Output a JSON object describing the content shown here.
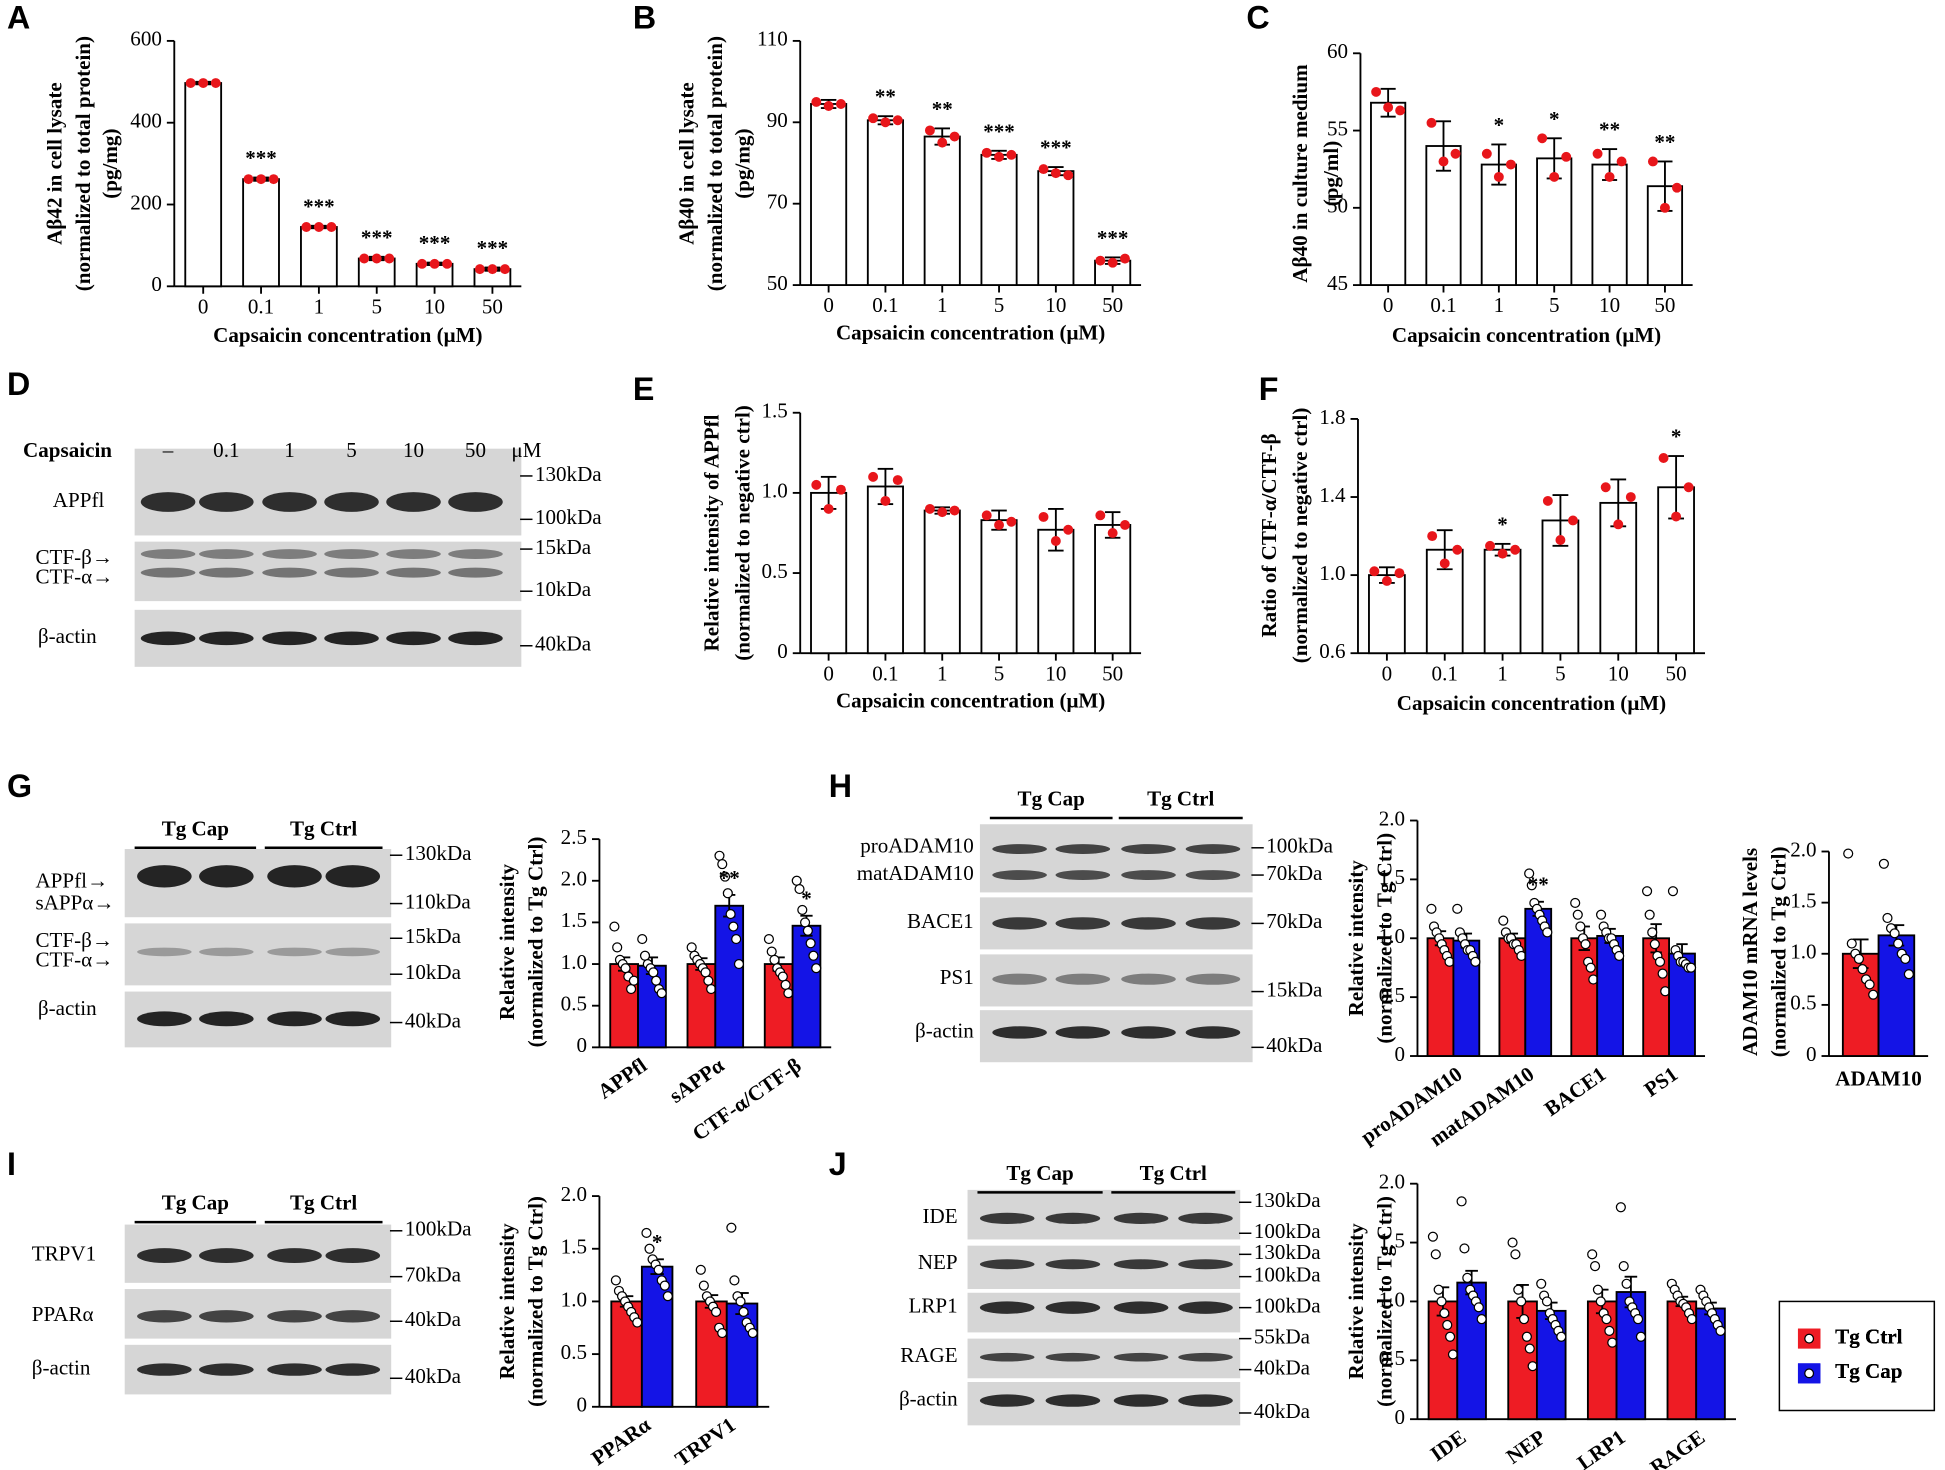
{
  "chart_data": [
    {
      "type": "bar",
      "letter": "A",
      "ylabel": [
        "Aβ42 in cell lysate",
        "(normalized to total protein)",
        "(pg/mg)"
      ],
      "xlabel": "Capsaicin concentration (μM)",
      "categories": [
        "0",
        "0.1",
        "1",
        "5",
        "10",
        "50"
      ],
      "values": [
        497,
        262,
        145,
        68,
        55,
        42
      ],
      "errors": [
        3,
        4,
        3,
        4,
        3,
        4
      ],
      "points": [
        [
          497,
          497,
          497
        ],
        [
          262,
          262,
          262
        ],
        [
          145,
          145,
          145
        ],
        [
          68,
          68,
          68
        ],
        [
          55,
          55,
          55
        ],
        [
          42,
          42,
          42
        ]
      ],
      "sig": [
        null,
        "***",
        "***",
        "***",
        "***",
        "***"
      ],
      "color": "#e8161b",
      "ylim": [
        0,
        600
      ],
      "yticks": [
        0,
        200,
        400,
        600
      ]
    },
    {
      "type": "bar",
      "letter": "B",
      "ylabel": [
        "Aβ40 in cell lysate",
        "(normalized to total protein)",
        "(pg/mg)"
      ],
      "xlabel": "Capsaicin concentration (μM)",
      "categories": [
        "0",
        "0.1",
        "1",
        "5",
        "10",
        "50"
      ],
      "values": [
        94.5,
        90.5,
        86.5,
        82,
        78,
        56
      ],
      "errors": [
        1,
        1,
        2,
        1,
        1,
        0.8
      ],
      "points": [
        [
          95,
          94,
          94.5
        ],
        [
          91,
          90,
          90.5
        ],
        [
          88,
          85,
          86.5
        ],
        [
          82.5,
          81.5,
          82
        ],
        [
          78.5,
          77.5,
          77
        ],
        [
          56,
          55.5,
          56.5
        ]
      ],
      "sig": [
        null,
        "**",
        "**",
        "***",
        "***",
        "***"
      ],
      "color": "#e8161b",
      "ylim": [
        50,
        110
      ],
      "yticks": [
        50,
        70,
        90,
        110
      ]
    },
    {
      "type": "bar",
      "letter": "C",
      "ylabel": [
        "Aβ40 in culture medium",
        "(pg/ml)"
      ],
      "xlabel": "Capsaicin concentration (μM)",
      "categories": [
        "0",
        "0.1",
        "1",
        "5",
        "10",
        "50"
      ],
      "values": [
        56.8,
        54,
        52.8,
        53.2,
        52.8,
        51.4
      ],
      "errors": [
        0.9,
        1.6,
        1.3,
        1.3,
        1.0,
        1.6
      ],
      "points": [
        [
          57.5,
          56.5,
          56.3
        ],
        [
          55.5,
          53,
          53.5
        ],
        [
          53.5,
          52,
          52.8
        ],
        [
          54.5,
          52,
          53.3
        ],
        [
          53.5,
          52,
          53
        ],
        [
          53,
          50,
          51.3
        ]
      ],
      "sig": [
        null,
        null,
        "*",
        "*",
        "**",
        "**"
      ],
      "color": "#e8161b",
      "ylim": [
        45,
        60
      ],
      "yticks": [
        45,
        50,
        55,
        60
      ]
    },
    {
      "type": "bar",
      "letter": "E",
      "ylabel": [
        "Relative intensity of APPfl",
        "(normalized to negative ctrl)"
      ],
      "xlabel": "Capsaicin concentration (μM)",
      "categories": [
        "0",
        "0.1",
        "1",
        "5",
        "10",
        "50"
      ],
      "values": [
        1.0,
        1.04,
        0.89,
        0.83,
        0.77,
        0.8
      ],
      "errors": [
        0.1,
        0.11,
        0.02,
        0.06,
        0.13,
        0.08
      ],
      "points": [
        [
          1.05,
          0.9,
          1.02
        ],
        [
          1.1,
          0.95,
          1.08
        ],
        [
          0.9,
          0.88,
          0.89
        ],
        [
          0.86,
          0.8,
          0.82
        ],
        [
          0.85,
          0.7,
          0.77
        ],
        [
          0.86,
          0.75,
          0.8
        ]
      ],
      "sig": [
        null,
        null,
        null,
        null,
        null,
        null
      ],
      "color": "#e8161b",
      "ylim": [
        0,
        1.5
      ],
      "yticks": [
        0,
        0.5,
        {
          "value": 1,
          "label": "1.0"
        },
        1.5
      ]
    },
    {
      "type": "bar",
      "letter": "F",
      "ylabel": [
        "Ratio of CTF-α/CTF-β",
        "(normalized to negative ctrl)"
      ],
      "xlabel": "Capsaicin concentration (μM)",
      "categories": [
        "0",
        "0.1",
        "1",
        "5",
        "10",
        "50"
      ],
      "values": [
        1.0,
        1.13,
        1.13,
        1.28,
        1.37,
        1.45
      ],
      "errors": [
        0.04,
        0.1,
        0.03,
        0.13,
        0.12,
        0.16
      ],
      "points": [
        [
          1.02,
          0.97,
          1.01
        ],
        [
          1.2,
          1.06,
          1.13
        ],
        [
          1.15,
          1.11,
          1.13
        ],
        [
          1.38,
          1.18,
          1.28
        ],
        [
          1.45,
          1.26,
          1.4
        ],
        [
          1.6,
          1.3,
          1.45
        ]
      ],
      "sig": [
        null,
        null,
        "*",
        null,
        null,
        "*"
      ],
      "color": "#e8161b",
      "ylim": [
        0.6,
        1.8
      ],
      "yticks": [
        0.6,
        {
          "value": 1,
          "label": "1.0"
        },
        1.4,
        1.8
      ]
    },
    {
      "type": "grouped-bar",
      "ylabel": [
        "Relative intensity",
        "(normalized to Tg Ctrl)"
      ],
      "categories": [
        "APPfl",
        "sAPPα",
        "CTF-α/CTF-β"
      ],
      "sig": [
        null,
        "**",
        "*"
      ],
      "series": [
        {
          "color": "#ee1c24",
          "values": [
            1.0,
            1.0,
            1.0
          ],
          "errors": [
            0.08,
            0.07,
            0.08
          ],
          "points": [
            [
              1.45,
              1.2,
              1.05,
              1.0,
              0.95,
              0.85,
              0.7,
              0.8
            ],
            [
              1.2,
              1.1,
              1.05,
              1.0,
              0.95,
              0.9,
              0.8,
              0.7
            ],
            [
              1.3,
              1.15,
              1.05,
              0.95,
              0.9,
              0.85,
              0.75,
              0.65
            ]
          ]
        },
        {
          "color": "#1414e6",
          "values": [
            0.98,
            1.7,
            1.46
          ],
          "errors": [
            0.1,
            0.13,
            0.12
          ],
          "points": [
            [
              1.3,
              1.1,
              1.0,
              0.95,
              0.9,
              0.8,
              0.7,
              0.65
            ],
            [
              2.3,
              2.2,
              2.05,
              1.85,
              1.6,
              1.45,
              1.3,
              1.0
            ],
            [
              2.0,
              1.9,
              1.65,
              1.5,
              1.4,
              1.25,
              1.1,
              0.95
            ]
          ]
        }
      ],
      "ylim": [
        0,
        2.5
      ],
      "yticks": [
        0,
        0.5,
        {
          "value": 1,
          "label": "1.0"
        },
        1.5,
        {
          "value": 2,
          "label": "2.0"
        },
        2.5
      ]
    },
    {
      "type": "grouped-bar",
      "ylabel": [
        "Relative intensity",
        "(normalized to Tg Ctrl)"
      ],
      "categories": [
        "proADAM10",
        "matADAM10",
        "BACE1",
        "PS1"
      ],
      "sig": [
        null,
        "**",
        null,
        null
      ],
      "series": [
        {
          "color": "#ee1c24",
          "values": [
            1.0,
            1.0,
            1.0,
            1.0
          ],
          "errors": [
            0.06,
            0.04,
            0.1,
            0.12
          ],
          "points": [
            [
              1.25,
              1.1,
              1.05,
              1.0,
              0.95,
              0.9,
              0.85,
              0.8
            ],
            [
              1.15,
              1.05,
              1.0,
              1.0,
              0.95,
              0.95,
              0.9,
              0.85
            ],
            [
              1.3,
              1.2,
              1.1,
              1.0,
              0.95,
              0.8,
              0.75,
              0.65
            ],
            [
              1.4,
              1.2,
              1.05,
              0.95,
              0.85,
              0.8,
              0.7,
              0.55
            ]
          ]
        },
        {
          "color": "#1414e6",
          "values": [
            0.98,
            1.25,
            1.02,
            0.87
          ],
          "errors": [
            0.06,
            0.06,
            0.06,
            0.08
          ],
          "points": [
            [
              1.25,
              1.05,
              1.0,
              0.95,
              0.9,
              0.9,
              0.85,
              0.8
            ],
            [
              1.55,
              1.45,
              1.3,
              1.25,
              1.2,
              1.15,
              1.1,
              1.05
            ],
            [
              1.2,
              1.1,
              1.05,
              1.0,
              1.0,
              0.95,
              0.9,
              0.85
            ],
            [
              1.4,
              0.9,
              0.85,
              0.8,
              0.8,
              0.78,
              0.75,
              0.75
            ]
          ]
        }
      ],
      "ylim": [
        0,
        2.0
      ],
      "yticks": [
        0,
        0.5,
        {
          "value": 1,
          "label": "1.0"
        },
        1.5,
        {
          "value": 2,
          "label": "2.0"
        }
      ]
    },
    {
      "type": "grouped-bar",
      "ylabel": [
        "ADAM10 mRNA levels",
        "(normalized to Tg Ctrl)"
      ],
      "categories": [
        "ADAM10"
      ],
      "sig": [
        null
      ],
      "series": [
        {
          "color": "#ee1c24",
          "values": [
            1.0
          ],
          "errors": [
            0.14
          ],
          "points": [
            [
              1.98,
              1.1,
              1.0,
              0.95,
              0.85,
              0.75,
              0.7,
              0.6
            ]
          ]
        },
        {
          "color": "#1414e6",
          "values": [
            1.18
          ],
          "errors": [
            0.1
          ],
          "points": [
            [
              1.88,
              1.35,
              1.25,
              1.2,
              1.1,
              1.0,
              0.95,
              0.8
            ]
          ]
        }
      ],
      "ylim": [
        0,
        2.0
      ],
      "yticks": [
        0,
        0.5,
        {
          "value": 1,
          "label": "1.0"
        },
        1.5,
        {
          "value": 2,
          "label": "2.0"
        }
      ]
    },
    {
      "type": "grouped-bar",
      "ylabel": [
        "Relative intensity",
        "(normalized to Tg Ctrl)"
      ],
      "categories": [
        "PPARα",
        "TRPV1"
      ],
      "sig": [
        "*",
        null
      ],
      "series": [
        {
          "color": "#ee1c24",
          "values": [
            1.0,
            1.0
          ],
          "errors": [
            0.05,
            0.06
          ],
          "points": [
            [
              1.2,
              1.1,
              1.05,
              1.0,
              0.95,
              0.9,
              0.85,
              0.8
            ],
            [
              1.3,
              1.15,
              1.05,
              1.0,
              0.95,
              0.9,
              0.75,
              0.7
            ]
          ]
        },
        {
          "color": "#1414e6",
          "values": [
            1.33,
            0.98
          ],
          "errors": [
            0.07,
            0.1
          ],
          "points": [
            [
              1.65,
              1.5,
              1.4,
              1.35,
              1.3,
              1.2,
              1.15,
              1.05
            ],
            [
              1.7,
              1.2,
              1.05,
              1.0,
              0.9,
              0.8,
              0.75,
              0.7
            ]
          ]
        }
      ],
      "ylim": [
        0,
        2.0
      ],
      "yticks": [
        0,
        0.5,
        {
          "value": 1,
          "label": "1.0"
        },
        1.5,
        {
          "value": 2,
          "label": "2.0"
        }
      ]
    },
    {
      "type": "grouped-bar",
      "ylabel": [
        "Relative intensity",
        "(normalized to Tg Ctrl)"
      ],
      "categories": [
        "IDE",
        "NEP",
        "LRP1",
        "RAGE"
      ],
      "sig": [
        null,
        null,
        null,
        null
      ],
      "series": [
        {
          "name": "Tg Ctrl",
          "color": "#ee1c24",
          "values": [
            1.0,
            1.0,
            1.0,
            1.0
          ],
          "errors": [
            0.12,
            0.14,
            0.1,
            0.04
          ],
          "points": [
            [
              1.55,
              1.4,
              1.1,
              1.0,
              0.9,
              0.8,
              0.7,
              0.55
            ],
            [
              1.5,
              1.4,
              1.1,
              1.0,
              0.85,
              0.7,
              0.6,
              0.45
            ],
            [
              1.4,
              1.3,
              1.1,
              1.0,
              0.9,
              0.85,
              0.75,
              0.65
            ],
            [
              1.15,
              1.1,
              1.05,
              1.0,
              0.98,
              0.95,
              0.9,
              0.85
            ]
          ]
        },
        {
          "name": "Tg Cap",
          "color": "#1414e6",
          "values": [
            1.16,
            0.92,
            1.08,
            0.94
          ],
          "errors": [
            0.1,
            0.07,
            0.13,
            0.05
          ],
          "points": [
            [
              1.85,
              1.45,
              1.2,
              1.1,
              1.05,
              1.0,
              0.95,
              0.85
            ],
            [
              1.15,
              1.05,
              1.0,
              0.9,
              0.85,
              0.8,
              0.75,
              0.7
            ],
            [
              1.8,
              1.3,
              1.15,
              1.0,
              0.95,
              0.9,
              0.85,
              0.7
            ],
            [
              1.1,
              1.05,
              1.0,
              0.95,
              0.9,
              0.85,
              0.8,
              0.75
            ]
          ]
        }
      ],
      "ylim": [
        0,
        2.0
      ],
      "yticks": [
        0,
        0.5,
        {
          "value": 1,
          "label": "1.0"
        },
        1.5,
        {
          "value": 2,
          "label": "2.0"
        }
      ]
    }
  ],
  "blots": [
    {
      "letter": "D",
      "header": "Capsaicin",
      "lanes": [
        "–",
        "0.1",
        "1",
        "5",
        "10",
        "50"
      ],
      "unit": "μM",
      "rows": [
        "APPfl",
        "CTF-β→",
        "CTF-α→",
        "β-actin"
      ],
      "markers": [
        "130kDa",
        "100kDa",
        "15kDa",
        "10kDa",
        "40kDa"
      ]
    },
    {
      "letter": "G",
      "groups": [
        "Tg Cap",
        "Tg Ctrl"
      ],
      "rows": [
        "APPfl→",
        "sAPPα→",
        "CTF-β→",
        "CTF-α→",
        "β-actin"
      ],
      "markers": [
        "130kDa",
        "110kDa",
        "15kDa",
        "10kDa",
        "40kDa"
      ]
    },
    {
      "letter": "H",
      "groups": [
        "Tg Cap",
        "Tg Ctrl"
      ],
      "rows": [
        "proADAM10",
        "matADAM10",
        "BACE1",
        "PS1",
        "β-actin"
      ],
      "markers": [
        "100kDa",
        "70kDa",
        "70kDa",
        "15kDa",
        "40kDa"
      ]
    },
    {
      "letter": "I",
      "groups": [
        "Tg Cap",
        "Tg Ctrl"
      ],
      "rows": [
        "TRPV1",
        "PPARα",
        "β-actin"
      ],
      "markers": [
        "100kDa",
        "70kDa",
        "40kDa",
        "40kDa"
      ]
    },
    {
      "letter": "J",
      "groups": [
        "Tg Cap",
        "Tg Ctrl"
      ],
      "rows": [
        "IDE",
        "NEP",
        "LRP1",
        "RAGE",
        "β-actin"
      ],
      "markers": [
        "130kDa",
        "100kDa",
        "130kDa",
        "100kDa",
        "100kDa",
        "55kDa",
        "40kDa",
        "40kDa"
      ]
    }
  ]
}
